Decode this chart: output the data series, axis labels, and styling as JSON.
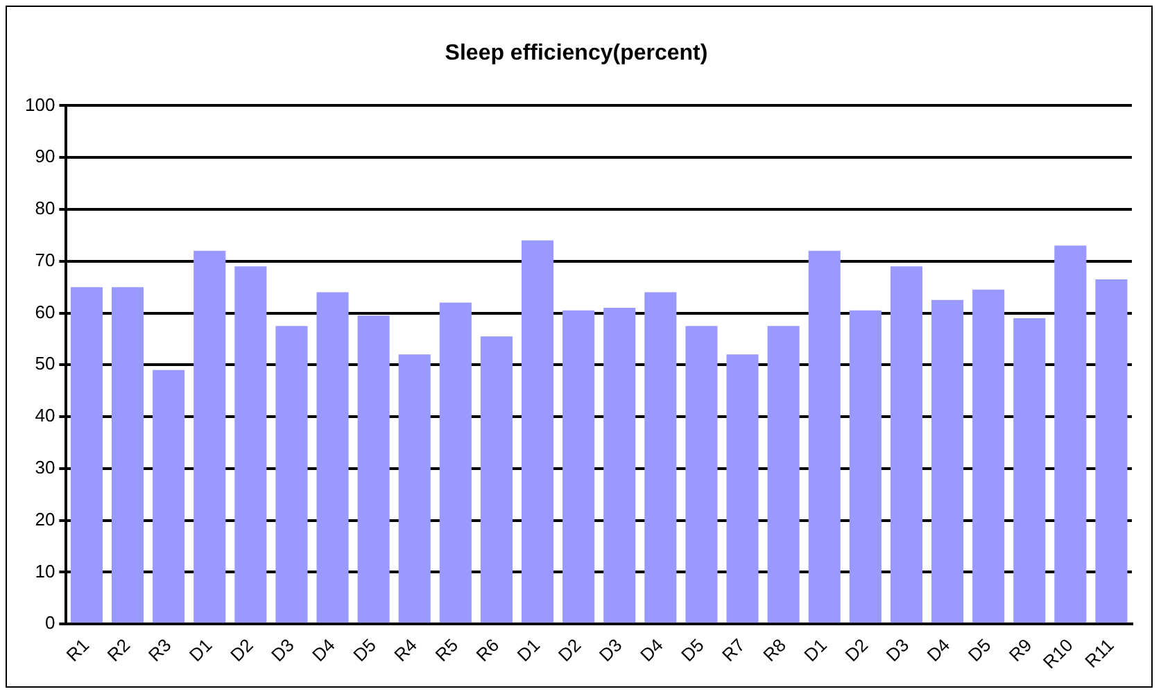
{
  "chart_data": {
    "type": "bar",
    "title": "Sleep efficiency(percent)",
    "categories": [
      "R1",
      "R2",
      "R3",
      "D1",
      "D2",
      "D3",
      "D4",
      "D5",
      "R4",
      "R5",
      "R6",
      "D1",
      "D2",
      "D3",
      "D4",
      "D5",
      "R7",
      "R8",
      "D1",
      "D2",
      "D3",
      "D4",
      "D5",
      "R9",
      "R10",
      "R11"
    ],
    "values": [
      65,
      65,
      49,
      72,
      69,
      57.5,
      64,
      59.5,
      52,
      62,
      55.5,
      74,
      60.5,
      61,
      64,
      57.5,
      52,
      57.5,
      72,
      60.5,
      69,
      62.5,
      64.5,
      59,
      73,
      66.5
    ],
    "color": "#9999ff",
    "ylim": [
      0,
      100
    ],
    "yticks": [
      0,
      10,
      20,
      30,
      40,
      50,
      60,
      70,
      80,
      90,
      100
    ],
    "grid": "y"
  }
}
